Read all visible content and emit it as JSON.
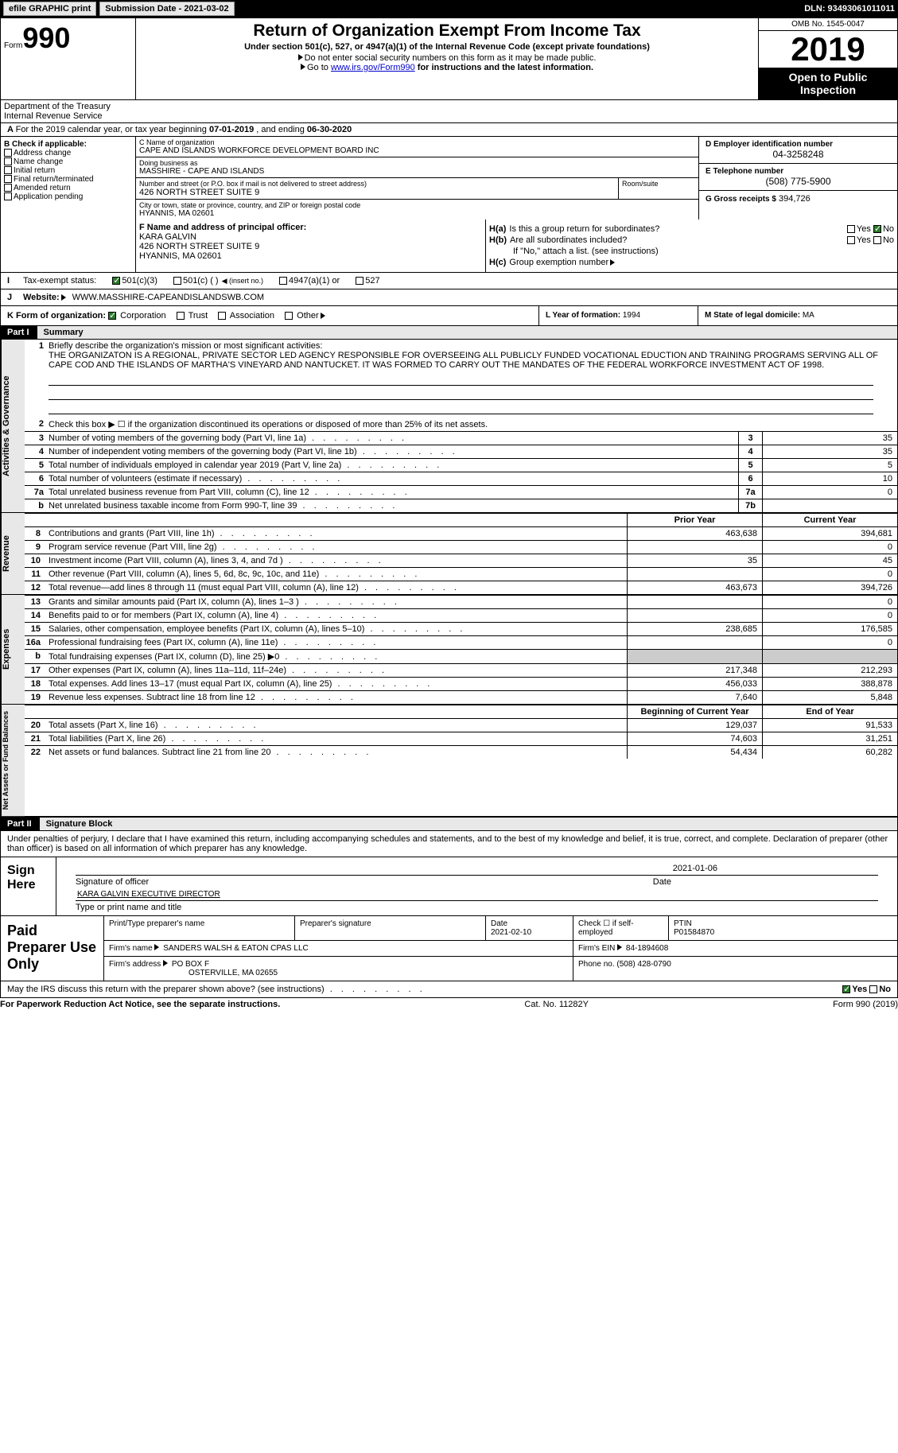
{
  "topbar": {
    "efile_btn": "efile GRAPHIC print",
    "sub_date_label": "Submission Date - 2021-03-02",
    "dln_label": "DLN: 93493061011011"
  },
  "header": {
    "form_prefix": "Form",
    "form_num": "990",
    "title": "Return of Organization Exempt From Income Tax",
    "subtitle": "Under section 501(c), 527, or 4947(a)(1) of the Internal Revenue Code (except private foundations)",
    "note1": "Do not enter social security numbers on this form as it may be made public.",
    "note2_prefix": "Go to ",
    "note2_link": "www.irs.gov/Form990",
    "note2_suffix": " for instructions and the latest information.",
    "omb": "OMB No. 1545-0047",
    "year": "2019",
    "open_public1": "Open to Public",
    "open_public2": "Inspection",
    "dept1": "Department of the Treasury",
    "dept2": "Internal Revenue Service"
  },
  "period": {
    "text_prefix": "For the 2019 calendar year, or tax year beginning ",
    "begin": "07-01-2019",
    "mid": " , and ending ",
    "end": "06-30-2020"
  },
  "section_b": {
    "label": "B Check if applicable:",
    "items": [
      "Address change",
      "Name change",
      "Initial return",
      "Final return/terminated",
      "Amended return",
      "Application pending"
    ]
  },
  "section_c": {
    "name_label": "C Name of organization",
    "name": "CAPE AND ISLANDS WORKFORCE DEVELOPMENT BOARD INC",
    "dba_label": "Doing business as",
    "dba": "MASSHIRE - CAPE AND ISLANDS",
    "street_label": "Number and street (or P.O. box if mail is not delivered to street address)",
    "street": "426 NORTH STREET SUITE 9",
    "room_label": "Room/suite",
    "city_label": "City or town, state or province, country, and ZIP or foreign postal code",
    "city": "HYANNIS, MA  02601"
  },
  "section_d": {
    "label": "D Employer identification number",
    "value": "04-3258248"
  },
  "section_e": {
    "label": "E Telephone number",
    "value": "(508) 775-5900"
  },
  "section_g": {
    "label": "G Gross receipts $",
    "value": "394,726"
  },
  "section_f": {
    "label": "F Name and address of principal officer:",
    "name": "KARA GALVIN",
    "street": "426 NORTH STREET SUITE 9",
    "city": "HYANNIS, MA  02601"
  },
  "section_h": {
    "ha_label": "H(a)",
    "ha_text": "Is this a group return for subordinates?",
    "hb_label": "H(b)",
    "hb_text": "Are all subordinates included?",
    "hb_note": "If \"No,\" attach a list. (see instructions)",
    "hc_label": "H(c)",
    "hc_text": "Group exemption number",
    "yes": "Yes",
    "no": "No"
  },
  "section_i": {
    "label": "I",
    "text": "Tax-exempt status:",
    "opts": [
      "501(c)(3)",
      "501(c) (  )",
      "(insert no.)",
      "4947(a)(1) or",
      "527"
    ]
  },
  "section_j": {
    "label": "J",
    "text": "Website:",
    "value": "WWW.MASSHIRE-CAPEANDISLANDSWB.COM"
  },
  "section_k": {
    "label": "K Form of organization:",
    "opts": [
      "Corporation",
      "Trust",
      "Association",
      "Other"
    ]
  },
  "section_l": {
    "label": "L Year of formation:",
    "value": "1994"
  },
  "section_m": {
    "label": "M State of legal domicile:",
    "value": "MA"
  },
  "part1": {
    "header": "Part I",
    "title": "Summary"
  },
  "governance": {
    "side": "Activities & Governance",
    "line1_num": "1",
    "line1_text": "Briefly describe the organization's mission or most significant activities:",
    "mission": "THE ORGANIZATON IS A REGIONAL, PRIVATE SECTOR LED AGENCY RESPONSIBLE FOR OVERSEEING ALL PUBLICLY FUNDED VOCATIONAL EDUCTION AND TRAINING PROGRAMS SERVING ALL OF CAPE COD AND THE ISLANDS OF MARTHA'S VINEYARD AND NANTUCKET. IT WAS FORMED TO CARRY OUT THE MANDATES OF THE FEDERAL WORKFORCE INVESTMENT ACT OF 1998.",
    "line2_num": "2",
    "line2_text": "Check this box ▶ ☐ if the organization discontinued its operations or disposed of more than 25% of its net assets.",
    "rows": [
      {
        "num": "3",
        "text": "Number of voting members of the governing body (Part VI, line 1a)",
        "cell": "3",
        "val": "35"
      },
      {
        "num": "4",
        "text": "Number of independent voting members of the governing body (Part VI, line 1b)",
        "cell": "4",
        "val": "35"
      },
      {
        "num": "5",
        "text": "Total number of individuals employed in calendar year 2019 (Part V, line 2a)",
        "cell": "5",
        "val": "5"
      },
      {
        "num": "6",
        "text": "Total number of volunteers (estimate if necessary)",
        "cell": "6",
        "val": "10"
      },
      {
        "num": "7a",
        "text": "Total unrelated business revenue from Part VIII, column (C), line 12",
        "cell": "7a",
        "val": "0"
      },
      {
        "num": "b",
        "text": "Net unrelated business taxable income from Form 990-T, line 39",
        "cell": "7b",
        "val": ""
      }
    ]
  },
  "revenue": {
    "side": "Revenue",
    "prior": "Prior Year",
    "current": "Current Year",
    "rows": [
      {
        "num": "8",
        "text": "Contributions and grants (Part VIII, line 1h)",
        "prior": "463,638",
        "current": "394,681"
      },
      {
        "num": "9",
        "text": "Program service revenue (Part VIII, line 2g)",
        "prior": "",
        "current": "0"
      },
      {
        "num": "10",
        "text": "Investment income (Part VIII, column (A), lines 3, 4, and 7d )",
        "prior": "35",
        "current": "45"
      },
      {
        "num": "11",
        "text": "Other revenue (Part VIII, column (A), lines 5, 6d, 8c, 9c, 10c, and 11e)",
        "prior": "",
        "current": "0"
      },
      {
        "num": "12",
        "text": "Total revenue—add lines 8 through 11 (must equal Part VIII, column (A), line 12)",
        "prior": "463,673",
        "current": "394,726"
      }
    ]
  },
  "expenses": {
    "side": "Expenses",
    "rows": [
      {
        "num": "13",
        "text": "Grants and similar amounts paid (Part IX, column (A), lines 1–3 )",
        "prior": "",
        "current": "0"
      },
      {
        "num": "14",
        "text": "Benefits paid to or for members (Part IX, column (A), line 4)",
        "prior": "",
        "current": "0"
      },
      {
        "num": "15",
        "text": "Salaries, other compensation, employee benefits (Part IX, column (A), lines 5–10)",
        "prior": "238,685",
        "current": "176,585"
      },
      {
        "num": "16a",
        "text": "Professional fundraising fees (Part IX, column (A), line 11e)",
        "prior": "",
        "current": "0"
      },
      {
        "num": "b",
        "text": "Total fundraising expenses (Part IX, column (D), line 25) ▶0",
        "prior": "grey",
        "current": "grey"
      },
      {
        "num": "17",
        "text": "Other expenses (Part IX, column (A), lines 11a–11d, 11f–24e)",
        "prior": "217,348",
        "current": "212,293"
      },
      {
        "num": "18",
        "text": "Total expenses. Add lines 13–17 (must equal Part IX, column (A), line 25)",
        "prior": "456,033",
        "current": "388,878"
      },
      {
        "num": "19",
        "text": "Revenue less expenses. Subtract line 18 from line 12",
        "prior": "7,640",
        "current": "5,848"
      }
    ]
  },
  "netassets": {
    "side": "Net Assets or Fund Balances",
    "begin": "Beginning of Current Year",
    "end": "End of Year",
    "rows": [
      {
        "num": "20",
        "text": "Total assets (Part X, line 16)",
        "prior": "129,037",
        "current": "91,533"
      },
      {
        "num": "21",
        "text": "Total liabilities (Part X, line 26)",
        "prior": "74,603",
        "current": "31,251"
      },
      {
        "num": "22",
        "text": "Net assets or fund balances. Subtract line 21 from line 20",
        "prior": "54,434",
        "current": "60,282"
      }
    ]
  },
  "part2": {
    "header": "Part II",
    "title": "Signature Block",
    "perjury": "Under penalties of perjury, I declare that I have examined this return, including accompanying schedules and statements, and to the best of my knowledge and belief, it is true, correct, and complete. Declaration of preparer (other than officer) is based on all information of which preparer has any knowledge."
  },
  "sign": {
    "label": "Sign Here",
    "sig_officer": "Signature of officer",
    "date_label": "Date",
    "date_val": "2021-01-06",
    "name_title": "KARA GALVIN  EXECUTIVE DIRECTOR",
    "type_name": "Type or print name and title"
  },
  "paid": {
    "label": "Paid Preparer Use Only",
    "preparer_name_label": "Print/Type preparer's name",
    "preparer_sig_label": "Preparer's signature",
    "date_label": "Date",
    "date_val": "2021-02-10",
    "check_label": "Check ☐ if self-employed",
    "ptin_label": "PTIN",
    "ptin_val": "P01584870",
    "firm_name_label": "Firm's name",
    "firm_name": "SANDERS WALSH & EATON CPAS LLC",
    "firm_ein_label": "Firm's EIN",
    "firm_ein": "84-1894608",
    "firm_addr_label": "Firm's address",
    "firm_addr1": "PO BOX F",
    "firm_addr2": "OSTERVILLE, MA  02655",
    "phone_label": "Phone no.",
    "phone": "(508) 428-0790"
  },
  "discuss": {
    "text": "May the IRS discuss this return with the preparer shown above? (see instructions)",
    "yes": "Yes",
    "no": "No"
  },
  "footer": {
    "left": "For Paperwork Reduction Act Notice, see the separate instructions.",
    "mid": "Cat. No. 11282Y",
    "right_form": "Form 990",
    "right_year": "(2019)"
  }
}
